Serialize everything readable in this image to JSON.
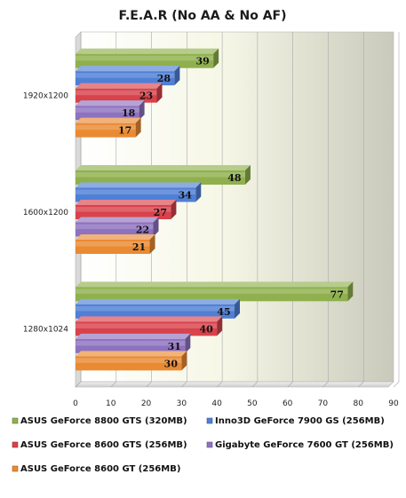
{
  "chart_data": {
    "type": "bar",
    "orientation": "horizontal",
    "title": "F.E.A.R (No AA & No AF)",
    "xlabel": "",
    "ylabel": "",
    "xlim": [
      0,
      90
    ],
    "xticks": [
      "0",
      "10",
      "20",
      "30",
      "40",
      "50",
      "60",
      "70",
      "80",
      "90"
    ],
    "grid": true,
    "legend_position": "bottom",
    "categories": [
      "1920x1200",
      "1600x1200",
      "1280x1024"
    ],
    "series": [
      {
        "name": "ASUS GeForce 8800 GTS (320MB)",
        "color": "#8fb04d",
        "values": [
          39,
          48,
          77
        ]
      },
      {
        "name": "Inno3D GeForce 7900 GS (256MB)",
        "color": "#4f7fd6",
        "values": [
          28,
          34,
          45
        ]
      },
      {
        "name": "ASUS GeForce 8600 GTS (256MB)",
        "color": "#d8424b",
        "values": [
          23,
          27,
          40
        ]
      },
      {
        "name": "Gigabyte GeForce 7600 GT (256MB)",
        "color": "#8d72bf",
        "values": [
          18,
          22,
          31
        ]
      },
      {
        "name": "ASUS GeForce 8600 GT (256MB)",
        "color": "#ea8a32",
        "values": [
          17,
          21,
          30
        ]
      }
    ]
  }
}
